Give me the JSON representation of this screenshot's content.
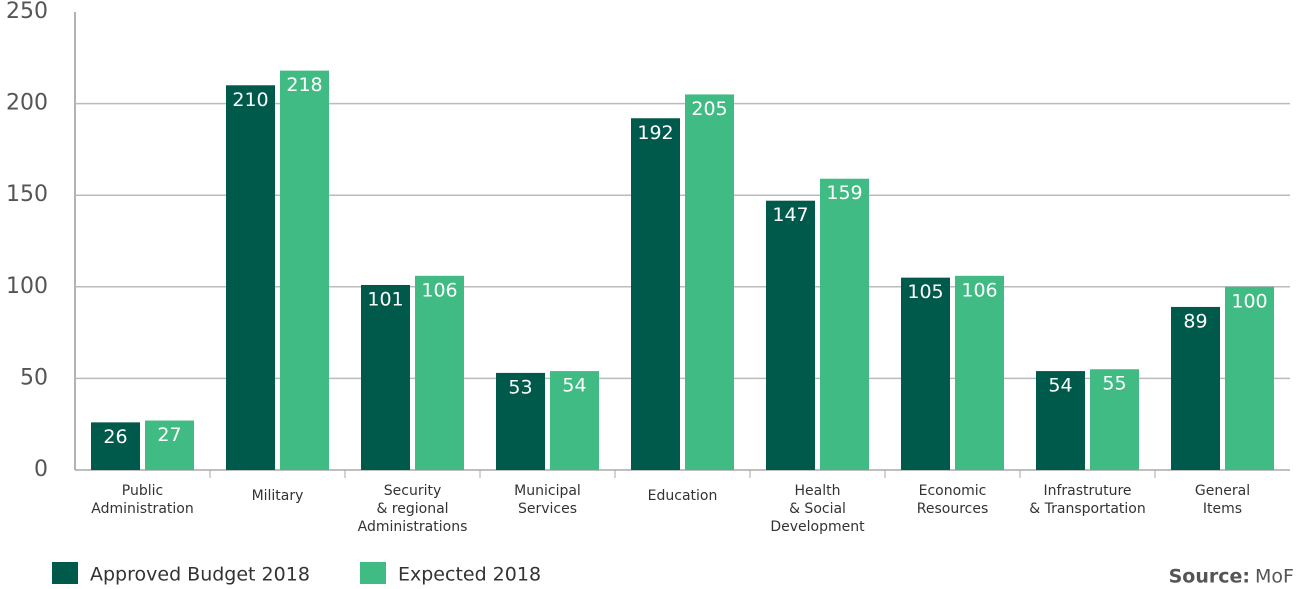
{
  "chart_data": {
    "type": "bar",
    "categories": [
      [
        "Public",
        "Administration"
      ],
      [
        "Military"
      ],
      [
        "Security",
        "& regional",
        "Administrations"
      ],
      [
        "Municipal",
        "Services"
      ],
      [
        "Education"
      ],
      [
        "Health",
        "& Social",
        "Development"
      ],
      [
        "Economic",
        "Resources"
      ],
      [
        "Infrastruture",
        "& Transportation"
      ],
      [
        "General",
        "Items"
      ]
    ],
    "series": [
      {
        "name": "Approved Budget 2018",
        "color": "#005a4b",
        "values": [
          26,
          210,
          101,
          53,
          192,
          147,
          105,
          54,
          89
        ]
      },
      {
        "name": "Expected 2018",
        "color": "#41bb84",
        "values": [
          27,
          218,
          106,
          54,
          205,
          159,
          106,
          55,
          100
        ]
      }
    ],
    "ylim": [
      0,
      250
    ],
    "yticks": [
      0,
      50,
      100,
      150,
      200,
      250
    ],
    "grid": true,
    "source": {
      "label": "Source:",
      "text": "MoF"
    }
  }
}
